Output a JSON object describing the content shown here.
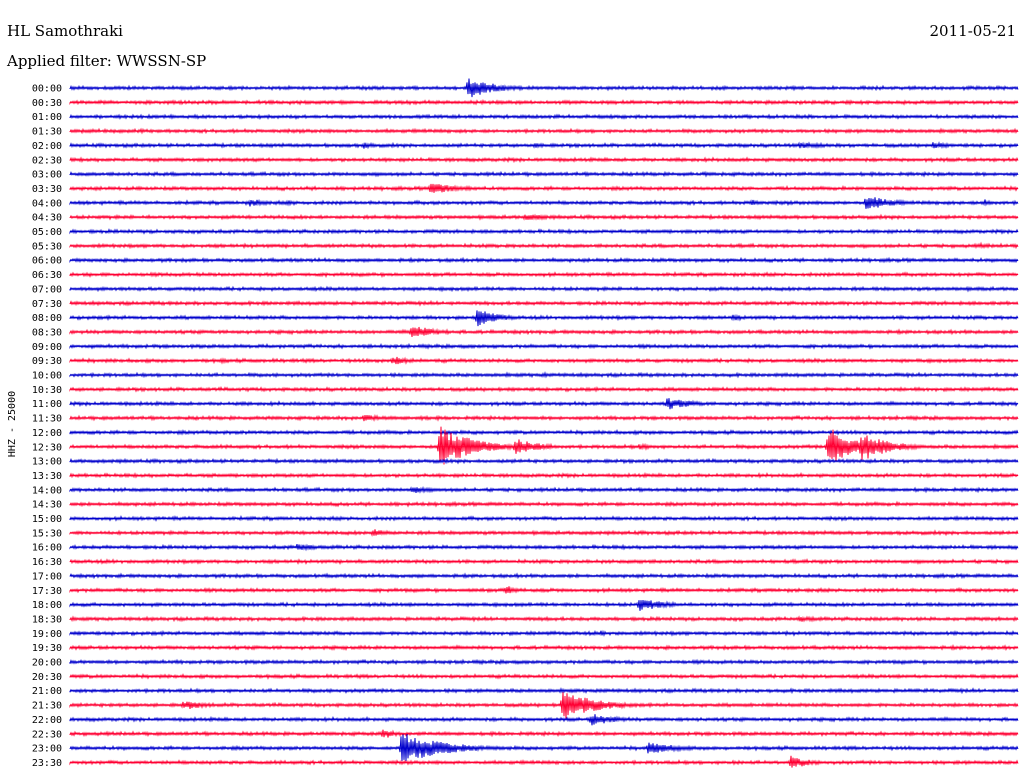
{
  "header": {
    "station": "HL Samothraki",
    "date": "2011-05-21",
    "filter": "Applied filter: WWSSN-SP"
  },
  "chart_data": {
    "type": "line",
    "title": "HL Samothraki",
    "subtitle": "Applied filter: WWSSN-SP",
    "date": "2011-05-21",
    "ylabel": "HHZ - 25000",
    "trace_colors": [
      "#0000cc",
      "#ff0033"
    ],
    "rows": [
      {
        "label": "00:00",
        "events": [
          {
            "x": 0.42,
            "amp": 1.6,
            "dur": 0.04
          }
        ]
      },
      {
        "label": "00:30",
        "events": [
          {
            "x": 0.74,
            "amp": 0.25,
            "dur": 0.03
          },
          {
            "x": 0.87,
            "amp": 0.2,
            "dur": 0.02
          },
          {
            "x": 0.52,
            "amp": 0.2,
            "dur": 0.03
          }
        ]
      },
      {
        "label": "01:00",
        "events": [
          {
            "x": 0.14,
            "amp": 0.2,
            "dur": 0.02
          }
        ]
      },
      {
        "label": "01:30",
        "events": [
          {
            "x": 0.19,
            "amp": 0.25,
            "dur": 0.02
          },
          {
            "x": 0.48,
            "amp": 0.2,
            "dur": 0.02
          }
        ]
      },
      {
        "label": "02:00",
        "events": [
          {
            "x": 0.31,
            "amp": 0.5,
            "dur": 0.02
          },
          {
            "x": 0.49,
            "amp": 0.35,
            "dur": 0.04
          },
          {
            "x": 0.77,
            "amp": 0.45,
            "dur": 0.06
          },
          {
            "x": 0.91,
            "amp": 0.45,
            "dur": 0.04
          }
        ]
      },
      {
        "label": "02:30",
        "events": [
          {
            "x": 0.58,
            "amp": 0.15,
            "dur": 0.03
          }
        ]
      },
      {
        "label": "03:00",
        "events": [
          {
            "x": 0.67,
            "amp": 0.3,
            "dur": 0.01
          },
          {
            "x": 0.94,
            "amp": 0.3,
            "dur": 0.01
          }
        ]
      },
      {
        "label": "03:30",
        "events": [
          {
            "x": 0.38,
            "amp": 0.8,
            "dur": 0.05
          },
          {
            "x": 0.71,
            "amp": 0.25,
            "dur": 0.02
          },
          {
            "x": 0.83,
            "amp": 0.3,
            "dur": 0.02
          }
        ]
      },
      {
        "label": "04:00",
        "events": [
          {
            "x": 0.19,
            "amp": 0.6,
            "dur": 0.03
          },
          {
            "x": 0.23,
            "amp": 0.4,
            "dur": 0.02
          },
          {
            "x": 0.72,
            "amp": 0.6,
            "dur": 0.01
          },
          {
            "x": 0.84,
            "amp": 1.1,
            "dur": 0.04
          },
          {
            "x": 0.965,
            "amp": 0.5,
            "dur": 0.02
          }
        ]
      },
      {
        "label": "04:30",
        "events": [
          {
            "x": 0.48,
            "amp": 0.5,
            "dur": 0.05
          }
        ]
      },
      {
        "label": "05:00",
        "events": [
          {
            "x": 0.2,
            "amp": 0.15,
            "dur": 0.1
          },
          {
            "x": 0.68,
            "amp": 0.25,
            "dur": 0.03
          }
        ]
      },
      {
        "label": "05:30",
        "events": [
          {
            "x": 0.96,
            "amp": 0.4,
            "dur": 0.03
          },
          {
            "x": 0.67,
            "amp": 0.15,
            "dur": 0.02
          }
        ]
      },
      {
        "label": "06:00",
        "events": [
          {
            "x": 0.58,
            "amp": 0.2,
            "dur": 0.03
          },
          {
            "x": 0.77,
            "amp": 0.2,
            "dur": 0.02
          }
        ]
      },
      {
        "label": "06:30",
        "events": [
          {
            "x": 0.82,
            "amp": 0.35,
            "dur": 0.02
          }
        ]
      },
      {
        "label": "07:00",
        "events": [
          {
            "x": 0.14,
            "amp": 0.2,
            "dur": 0.03
          }
        ]
      },
      {
        "label": "07:30",
        "events": [
          {
            "x": 0.82,
            "amp": 0.15,
            "dur": 0.02
          }
        ]
      },
      {
        "label": "08:00",
        "events": [
          {
            "x": 0.43,
            "amp": 1.4,
            "dur": 0.03
          },
          {
            "x": 0.7,
            "amp": 0.5,
            "dur": 0.02
          }
        ]
      },
      {
        "label": "08:30",
        "events": [
          {
            "x": 0.36,
            "amp": 1.0,
            "dur": 0.04
          }
        ]
      },
      {
        "label": "09:00",
        "events": [
          {
            "x": 0.59,
            "amp": 0.1,
            "dur": 0.02
          }
        ]
      },
      {
        "label": "09:30",
        "events": [
          {
            "x": 0.16,
            "amp": 0.35,
            "dur": 0.02
          },
          {
            "x": 0.34,
            "amp": 0.7,
            "dur": 0.03
          }
        ]
      },
      {
        "label": "10:00",
        "events": [
          {
            "x": 0.5,
            "amp": 0.35,
            "dur": 0.02
          }
        ]
      },
      {
        "label": "10:30",
        "events": []
      },
      {
        "label": "11:00",
        "events": [
          {
            "x": 0.63,
            "amp": 0.9,
            "dur": 0.04
          }
        ]
      },
      {
        "label": "11:30",
        "events": [
          {
            "x": 0.2,
            "amp": 0.3,
            "dur": 0.03
          },
          {
            "x": 0.26,
            "amp": 0.25,
            "dur": 0.03
          },
          {
            "x": 0.31,
            "amp": 0.6,
            "dur": 0.03
          },
          {
            "x": 0.37,
            "amp": 0.3,
            "dur": 0.03
          }
        ]
      },
      {
        "label": "12:00",
        "events": [
          {
            "x": 0.08,
            "amp": 0.1,
            "dur": 0.02
          }
        ]
      },
      {
        "label": "12:30",
        "events": [
          {
            "x": 0.39,
            "amp": 3.0,
            "dur": 0.05
          },
          {
            "x": 0.47,
            "amp": 1.2,
            "dur": 0.04
          },
          {
            "x": 0.6,
            "amp": 0.4,
            "dur": 0.04
          },
          {
            "x": 0.8,
            "amp": 3.0,
            "dur": 0.04
          },
          {
            "x": 0.835,
            "amp": 2.2,
            "dur": 0.04
          }
        ]
      },
      {
        "label": "13:00",
        "events": [
          {
            "x": 0.19,
            "amp": 0.1,
            "dur": 0.06
          }
        ]
      },
      {
        "label": "13:30",
        "events": []
      },
      {
        "label": "14:00",
        "events": [
          {
            "x": 0.36,
            "amp": 0.6,
            "dur": 0.03
          }
        ]
      },
      {
        "label": "14:30",
        "events": [
          {
            "x": 0.73,
            "amp": 0.2,
            "dur": 0.03
          },
          {
            "x": 0.88,
            "amp": 0.2,
            "dur": 0.03
          }
        ]
      },
      {
        "label": "15:00",
        "events": []
      },
      {
        "label": "15:30",
        "events": [
          {
            "x": 0.32,
            "amp": 0.6,
            "dur": 0.03
          },
          {
            "x": 0.54,
            "amp": 0.25,
            "dur": 0.02
          }
        ]
      },
      {
        "label": "16:00",
        "events": [
          {
            "x": 0.24,
            "amp": 0.55,
            "dur": 0.04
          },
          {
            "x": 0.55,
            "amp": 0.2,
            "dur": 0.02
          }
        ]
      },
      {
        "label": "16:30",
        "events": [
          {
            "x": 0.22,
            "amp": 0.2,
            "dur": 0.02
          },
          {
            "x": 0.6,
            "amp": 0.3,
            "dur": 0.05
          }
        ]
      },
      {
        "label": "17:00",
        "events": [
          {
            "x": 0.2,
            "amp": 0.2,
            "dur": 0.03
          }
        ]
      },
      {
        "label": "17:30",
        "events": [
          {
            "x": 0.46,
            "amp": 0.7,
            "dur": 0.02
          },
          {
            "x": 0.69,
            "amp": 0.2,
            "dur": 0.03
          }
        ]
      },
      {
        "label": "18:00",
        "events": [
          {
            "x": 0.6,
            "amp": 1.0,
            "dur": 0.04
          },
          {
            "x": 0.93,
            "amp": 0.2,
            "dur": 0.03
          }
        ]
      },
      {
        "label": "18:30",
        "events": [
          {
            "x": 0.5,
            "amp": 0.3,
            "dur": 0.03
          },
          {
            "x": 0.77,
            "amp": 0.45,
            "dur": 0.04
          }
        ]
      },
      {
        "label": "19:00",
        "events": [
          {
            "x": 0.56,
            "amp": 0.4,
            "dur": 0.02
          }
        ]
      },
      {
        "label": "19:30",
        "events": []
      },
      {
        "label": "20:00",
        "events": [
          {
            "x": 0.09,
            "amp": 0.2,
            "dur": 0.02
          }
        ]
      },
      {
        "label": "20:30",
        "events": [
          {
            "x": 0.98,
            "amp": 0.15,
            "dur": 0.02
          }
        ]
      },
      {
        "label": "21:00",
        "events": [
          {
            "x": 0.28,
            "amp": 0.2,
            "dur": 0.02
          },
          {
            "x": 0.56,
            "amp": 0.3,
            "dur": 0.03
          }
        ]
      },
      {
        "label": "21:30",
        "events": [
          {
            "x": 0.12,
            "amp": 0.7,
            "dur": 0.04
          },
          {
            "x": 0.52,
            "amp": 2.2,
            "dur": 0.05
          }
        ]
      },
      {
        "label": "22:00",
        "events": [
          {
            "x": 0.55,
            "amp": 0.9,
            "dur": 0.04
          }
        ]
      },
      {
        "label": "22:30",
        "events": [
          {
            "x": 0.33,
            "amp": 0.8,
            "dur": 0.02
          },
          {
            "x": 0.12,
            "amp": 0.15,
            "dur": 0.02
          }
        ]
      },
      {
        "label": "23:00",
        "events": [
          {
            "x": 0.35,
            "amp": 2.4,
            "dur": 0.06
          },
          {
            "x": 0.61,
            "amp": 0.9,
            "dur": 0.05
          }
        ]
      },
      {
        "label": "23:30",
        "events": [
          {
            "x": 0.76,
            "amp": 1.0,
            "dur": 0.03
          },
          {
            "x": 0.7,
            "amp": 0.3,
            "dur": 0.03
          }
        ]
      }
    ]
  }
}
